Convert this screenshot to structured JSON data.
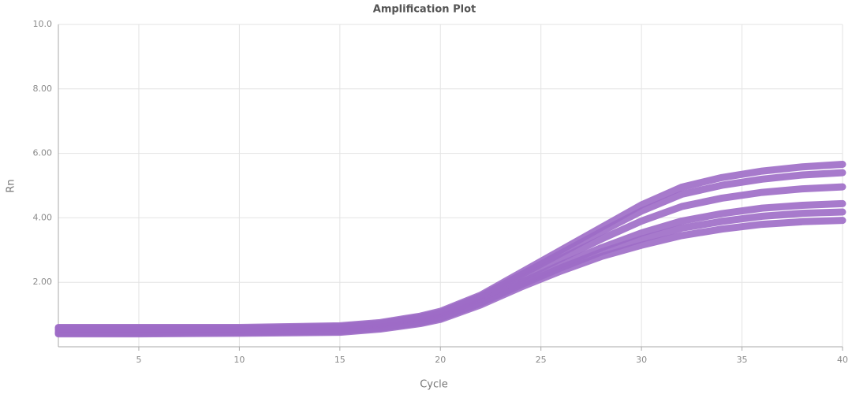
{
  "chart_data": {
    "type": "line",
    "title": "Amplification Plot",
    "x_label": "Cycle",
    "y_label": "Rn",
    "x": [
      1,
      5,
      10,
      15,
      17,
      19,
      20,
      22,
      24,
      26,
      28,
      30,
      32,
      34,
      36,
      38,
      40
    ],
    "series": [
      {
        "color": "#9d6cc6",
        "values": [
          0.4,
          0.4,
          0.42,
          0.45,
          0.55,
          0.72,
          0.85,
          1.3,
          1.85,
          2.35,
          2.8,
          3.15,
          3.45,
          3.65,
          3.8,
          3.88,
          3.92
        ]
      },
      {
        "color": "#9d6cc6",
        "values": [
          0.43,
          0.43,
          0.45,
          0.48,
          0.58,
          0.75,
          0.89,
          1.35,
          1.92,
          2.45,
          2.94,
          3.34,
          3.68,
          3.89,
          4.05,
          4.14,
          4.18
        ]
      },
      {
        "color": "#9d6cc6",
        "values": [
          0.46,
          0.46,
          0.47,
          0.51,
          0.61,
          0.79,
          0.93,
          1.39,
          1.99,
          2.55,
          3.07,
          3.53,
          3.9,
          4.13,
          4.3,
          4.39,
          4.44
        ]
      },
      {
        "color": "#9d6cc6",
        "values": [
          0.52,
          0.52,
          0.53,
          0.57,
          0.67,
          0.86,
          1.0,
          1.48,
          2.12,
          2.74,
          3.34,
          3.9,
          4.35,
          4.61,
          4.79,
          4.9,
          4.96
        ]
      },
      {
        "color": "#9d6cc6",
        "values": [
          0.57,
          0.57,
          0.57,
          0.62,
          0.72,
          0.92,
          1.06,
          1.56,
          2.23,
          2.9,
          3.57,
          4.21,
          4.73,
          5.01,
          5.2,
          5.33,
          5.4
        ]
      },
      {
        "color": "#9d6cc6",
        "values": [
          0.6,
          0.6,
          0.6,
          0.65,
          0.75,
          0.95,
          1.1,
          1.6,
          2.3,
          3.0,
          3.7,
          4.4,
          4.95,
          5.25,
          5.45,
          5.58,
          5.66
        ]
      }
    ],
    "xlim": [
      1,
      40
    ],
    "xticks": [
      5,
      10,
      15,
      20,
      25,
      30,
      35,
      40
    ],
    "ylim": [
      0,
      10
    ],
    "yticks": [
      {
        "value": 2,
        "label": "2.00"
      },
      {
        "value": 4,
        "label": "4.00"
      },
      {
        "value": 6,
        "label": "6.00"
      },
      {
        "value": 8,
        "label": "8.00"
      },
      {
        "value": 10,
        "label": "10.0"
      }
    ],
    "grid": true
  }
}
